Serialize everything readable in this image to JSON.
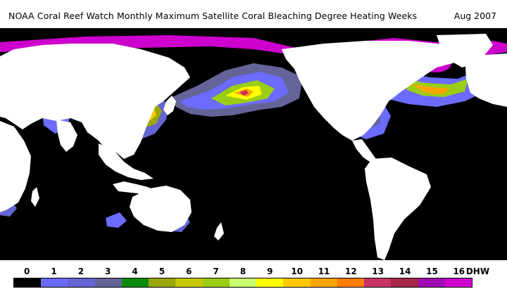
{
  "header": {
    "title": "NOAA Coral Reef Watch Monthly Maximum Satellite Coral Bleaching Degree Heating Weeks",
    "date": "Aug 2007"
  },
  "map": {
    "ocean_color": "#000000",
    "land_color": "#ffffff"
  },
  "legend": {
    "unit": "DHW",
    "items": [
      {
        "label": "0",
        "color": "#000000"
      },
      {
        "label": "1",
        "color": "#6b6bff"
      },
      {
        "label": "2",
        "color": "#6464d2"
      },
      {
        "label": "3",
        "color": "#646499"
      },
      {
        "label": "4",
        "color": "#0a8c0a"
      },
      {
        "label": "5",
        "color": "#9ba70a"
      },
      {
        "label": "6",
        "color": "#c8c800"
      },
      {
        "label": "7",
        "color": "#9bcd14"
      },
      {
        "label": "8",
        "color": "#c8ff6e"
      },
      {
        "label": "9",
        "color": "#ffff00"
      },
      {
        "label": "10",
        "color": "#ffc800"
      },
      {
        "label": "11",
        "color": "#ffa500"
      },
      {
        "label": "12",
        "color": "#ff7d00"
      },
      {
        "label": "13",
        "color": "#c83264"
      },
      {
        "label": "14",
        "color": "#a52846"
      },
      {
        "label": "15",
        "color": "#a00ab4"
      },
      {
        "label": "16",
        "color": "#cd00cd"
      }
    ]
  }
}
